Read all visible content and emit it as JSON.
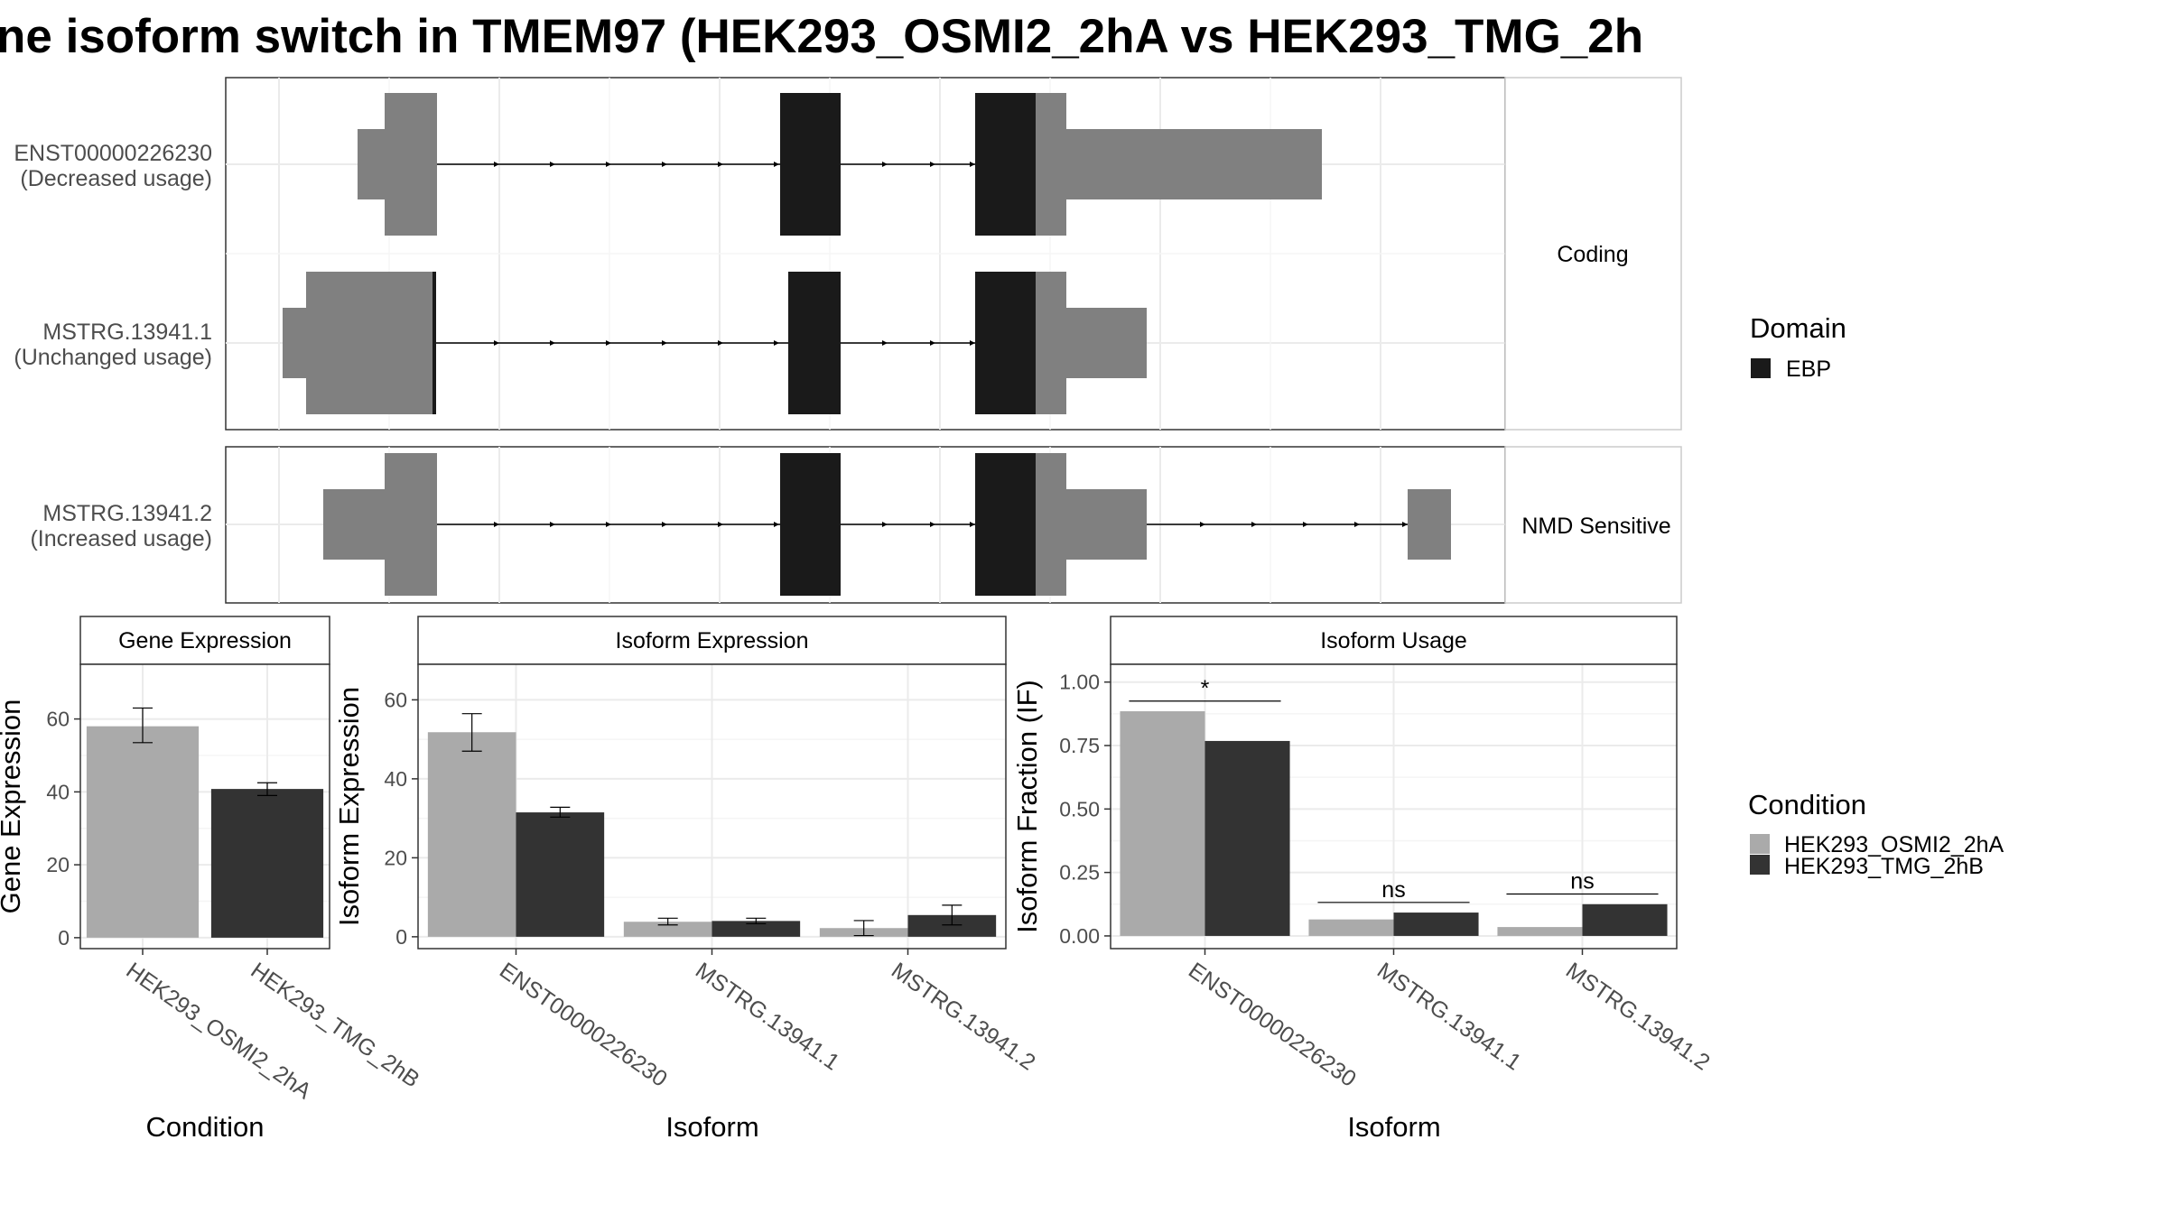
{
  "title": "ne isoform switch in TMEM97 (HEK293_OSMI2_2hA vs HEK293_TMG_2h",
  "isoform_panels": {
    "coding_label": "Coding",
    "nmd_label": "NMD Sensitive",
    "transcripts": [
      {
        "id": "ENST00000226230",
        "usage": "(Decreased usage)"
      },
      {
        "id": "MSTRG.13941.1",
        "usage": "(Unchanged usage)"
      },
      {
        "id": "MSTRG.13941.2",
        "usage": "(Increased usage)"
      }
    ]
  },
  "legends": {
    "domain": {
      "title": "Domain",
      "items": [
        {
          "label": "EBP",
          "color": "#1a1a1a"
        }
      ]
    },
    "condition": {
      "title": "Condition",
      "items": [
        {
          "label": "HEK293_OSMI2_2hA",
          "color": "#aaaaaa"
        },
        {
          "label": "HEK293_TMG_2hB",
          "color": "#333333"
        }
      ]
    }
  },
  "colors": {
    "utr": "#808080",
    "domain": "#1a1a1a",
    "cond_a": "#aaaaaa",
    "cond_b": "#333333"
  },
  "chart_data": [
    {
      "type": "bar",
      "title": "Gene Expression",
      "xlabel": "Condition",
      "ylabel": "Gene Expression",
      "categories": [
        "HEK293_OSMI2_2hA",
        "HEK293_TMG_2hB"
      ],
      "values": [
        58,
        40.8
      ],
      "error": [
        [
          53.5,
          63
        ],
        [
          39,
          42.5
        ]
      ],
      "ylim": [
        -3,
        75
      ],
      "yticks": [
        0,
        20,
        40,
        60
      ],
      "yticklabels": [
        "0",
        "20",
        "40",
        "60"
      ]
    },
    {
      "type": "bar",
      "title": "Isoform Expression",
      "xlabel": "Isoform",
      "ylabel": "Isoform Expression",
      "categories": [
        "ENST00000226230",
        "MSTRG.13941.1",
        "MSTRG.13941.2"
      ],
      "series": [
        {
          "name": "HEK293_OSMI2_2hA",
          "values": [
            51.8,
            3.8,
            2.2
          ],
          "error": [
            [
              47,
              56.5
            ],
            [
              3,
              4.7
            ],
            [
              0.3,
              4.1
            ]
          ]
        },
        {
          "name": "HEK293_TMG_2hB",
          "values": [
            31.5,
            4.0,
            5.5
          ],
          "error": [
            [
              30.3,
              32.8
            ],
            [
              3.3,
              4.7
            ],
            [
              3,
              8
            ]
          ]
        }
      ],
      "ylim": [
        -3,
        69
      ],
      "yticks": [
        0,
        20,
        40,
        60
      ],
      "yticklabels": [
        "0",
        "20",
        "40",
        "60"
      ]
    },
    {
      "type": "bar",
      "title": "Isoform Usage",
      "xlabel": "Isoform",
      "ylabel": "Isoform Fraction (IF)",
      "categories": [
        "ENST00000226230",
        "MSTRG.13941.1",
        "MSTRG.13941.2"
      ],
      "series": [
        {
          "name": "HEK293_OSMI2_2hA",
          "values": [
            0.885,
            0.065,
            0.035
          ]
        },
        {
          "name": "HEK293_TMG_2hB",
          "values": [
            0.768,
            0.092,
            0.125
          ]
        }
      ],
      "significance": [
        "*",
        "ns",
        "ns"
      ],
      "ylim": [
        -0.05,
        1.07
      ],
      "yticks": [
        0,
        0.25,
        0.5,
        0.75,
        1.0
      ],
      "yticklabels": [
        "0.00",
        "0.25",
        "0.50",
        "0.75",
        "1.00"
      ]
    }
  ]
}
